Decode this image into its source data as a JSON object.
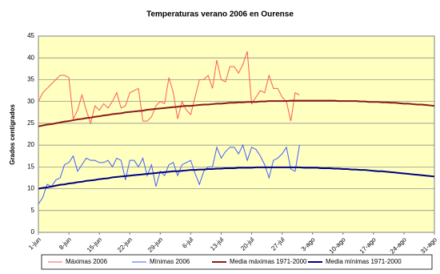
{
  "chart_data": {
    "type": "line",
    "title": "Temperaturas verano 2006 en Ourense",
    "y_label": "Grados centígrados",
    "categories": [
      "1-jun",
      null,
      null,
      null,
      null,
      null,
      null,
      "8-jun",
      null,
      null,
      null,
      null,
      null,
      null,
      "15-jun",
      null,
      null,
      null,
      null,
      null,
      null,
      "22-jun",
      null,
      null,
      null,
      null,
      null,
      null,
      "29-jun",
      null,
      null,
      null,
      null,
      null,
      null,
      "6-jul",
      null,
      null,
      null,
      null,
      null,
      null,
      "13-jul",
      null,
      null,
      null,
      null,
      null,
      null,
      "20-jul",
      null,
      null,
      null,
      null,
      null,
      null,
      "27-jul",
      null,
      null,
      null,
      null,
      null,
      null,
      "3-ago",
      null,
      null,
      null,
      null,
      null,
      null,
      "10-ago",
      null,
      null,
      null,
      null,
      null,
      null,
      "17-ago",
      null,
      null,
      null,
      null,
      null,
      null,
      "24-ago",
      null,
      null,
      null,
      null,
      null,
      null,
      "31-ago"
    ],
    "ylim": [
      0,
      45
    ],
    "yticks": [
      0,
      5,
      10,
      15,
      20,
      25,
      30,
      35,
      40,
      45
    ],
    "grid": true,
    "series": [
      {
        "name": "Máximas 2006",
        "color": "#ff5a5a",
        "values": [
          30,
          32,
          33,
          34,
          35,
          36,
          36,
          35.5,
          26,
          28,
          31.5,
          28,
          25,
          29,
          28,
          29.5,
          28.5,
          30,
          32,
          28.5,
          29,
          32,
          32.5,
          33,
          25.5,
          25.5,
          26.5,
          29,
          30,
          29.5,
          35.5,
          32,
          26,
          30,
          28,
          27,
          31,
          35,
          35,
          36,
          33,
          39.5,
          35,
          34.5,
          38,
          38,
          36.5,
          38.5,
          41.5,
          29.5,
          31,
          32.5,
          32,
          36,
          33,
          33,
          31,
          30,
          25.5,
          32,
          31.5,
          null,
          null,
          null,
          null,
          null,
          null,
          null,
          null,
          null,
          null,
          null,
          null,
          null,
          null,
          null,
          null,
          null,
          null,
          null,
          null,
          null,
          null,
          null,
          null,
          null,
          null,
          null,
          null,
          null,
          null,
          null
        ]
      },
      {
        "name": "Mínimas 2006",
        "color": "#3f5fff",
        "values": [
          6.5,
          8,
          11,
          10.5,
          12,
          12.5,
          15.5,
          16,
          17.5,
          14,
          15.5,
          17,
          16.5,
          16.5,
          16,
          16,
          16.5,
          15,
          17,
          16.5,
          12,
          16.5,
          16.5,
          15,
          17,
          13,
          15.5,
          10.5,
          14,
          13,
          15.5,
          16,
          13,
          15.5,
          16,
          16.5,
          13.5,
          11,
          14,
          15,
          15,
          19.5,
          17,
          18.5,
          19.5,
          19.5,
          18,
          20,
          16.5,
          19.5,
          19,
          17.5,
          15.5,
          12.5,
          16.5,
          17,
          18,
          19.5,
          14.5,
          14,
          20,
          null,
          null,
          null,
          null,
          null,
          null,
          null,
          null,
          null,
          null,
          null,
          null,
          null,
          null,
          null,
          null,
          null,
          null,
          null,
          null,
          null,
          null,
          null,
          null,
          null,
          null,
          null,
          null,
          null,
          null,
          null
        ]
      },
      {
        "name": "Media máximas 1971-2000",
        "color": "#8b1a1a",
        "values": [
          24.3,
          24.5,
          24.7,
          24.8,
          25.0,
          25.2,
          25.4,
          25.5,
          25.7,
          25.9,
          26.0,
          26.2,
          26.3,
          26.5,
          26.6,
          26.8,
          26.9,
          27.1,
          27.2,
          27.3,
          27.5,
          27.6,
          27.7,
          27.8,
          27.9,
          28.1,
          28.2,
          28.3,
          28.4,
          28.5,
          28.6,
          28.7,
          28.8,
          28.9,
          29.0,
          29.0,
          29.1,
          29.2,
          29.3,
          29.3,
          29.4,
          29.5,
          29.5,
          29.6,
          29.7,
          29.7,
          29.8,
          29.8,
          29.9,
          29.9,
          29.9,
          30.0,
          30.0,
          30.1,
          30.1,
          30.1,
          30.1,
          30.1,
          30.2,
          30.2,
          30.2,
          30.2,
          30.2,
          30.2,
          30.2,
          30.2,
          30.2,
          30.2,
          30.2,
          30.1,
          30.1,
          30.1,
          30.1,
          30.1,
          30.0,
          30.0,
          29.9,
          29.9,
          29.9,
          29.8,
          29.8,
          29.7,
          29.7,
          29.6,
          29.5,
          29.5,
          29.4,
          29.3,
          29.3,
          29.2,
          29.1,
          29.0
        ]
      },
      {
        "name": "Media mínimas 1971-2000",
        "color": "#000080",
        "values": [
          10.0,
          10.2,
          10.3,
          10.5,
          10.7,
          10.9,
          11.0,
          11.2,
          11.3,
          11.5,
          11.6,
          11.8,
          11.9,
          12.0,
          12.2,
          12.3,
          12.4,
          12.6,
          12.7,
          12.8,
          12.9,
          13.0,
          13.1,
          13.2,
          13.3,
          13.4,
          13.5,
          13.6,
          13.7,
          13.8,
          13.9,
          14.0,
          14.0,
          14.1,
          14.2,
          14.3,
          14.3,
          14.4,
          14.4,
          14.5,
          14.5,
          14.6,
          14.6,
          14.7,
          14.7,
          14.7,
          14.8,
          14.8,
          14.8,
          14.8,
          14.9,
          14.9,
          14.9,
          14.9,
          14.9,
          14.9,
          14.9,
          14.9,
          14.9,
          14.9,
          14.9,
          14.8,
          14.8,
          14.8,
          14.8,
          14.7,
          14.7,
          14.7,
          14.6,
          14.6,
          14.5,
          14.5,
          14.4,
          14.4,
          14.3,
          14.3,
          14.2,
          14.1,
          14.0,
          14.0,
          13.9,
          13.8,
          13.7,
          13.6,
          13.5,
          13.4,
          13.3,
          13.2,
          13.1,
          13.0,
          12.9,
          12.8
        ]
      }
    ]
  }
}
